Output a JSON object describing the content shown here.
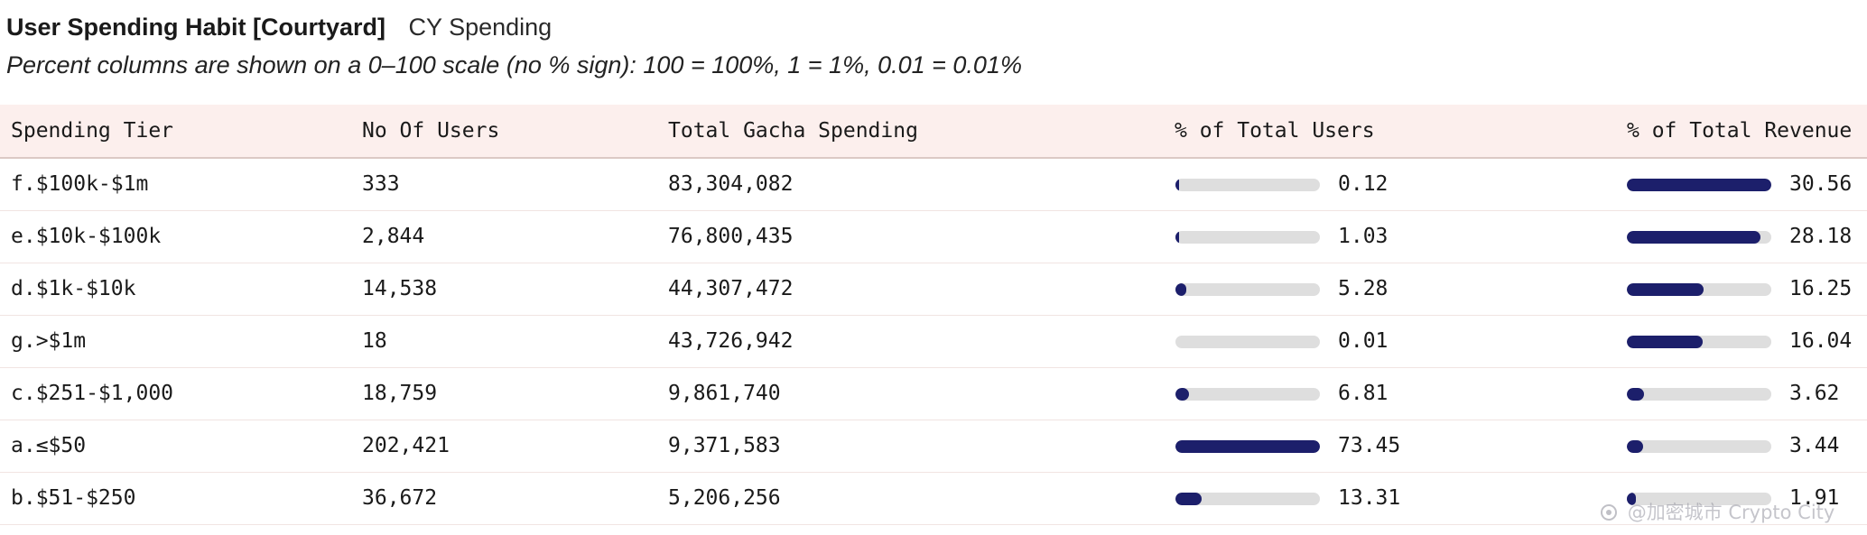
{
  "header": {
    "title": "User Spending Habit [Courtyard]",
    "subtitle_tag": "CY Spending",
    "note": "Percent columns are shown on a 0–100 scale (no % sign): 100 = 100%, 1 = 1%, 0.01 = 0.01%"
  },
  "table": {
    "columns": [
      "Spending Tier",
      "No Of Users",
      "Total Gacha Spending",
      "% of Total Users",
      "% of Total Revenue"
    ],
    "rows": [
      {
        "tier": "f.$100k-$1m",
        "users": "333",
        "spending": "83,304,082",
        "pct_users": "0.12",
        "pct_revenue": "30.56"
      },
      {
        "tier": "e.$10k-$100k",
        "users": "2,844",
        "spending": "76,800,435",
        "pct_users": "1.03",
        "pct_revenue": "28.18"
      },
      {
        "tier": "d.$1k-$10k",
        "users": "14,538",
        "spending": "44,307,472",
        "pct_users": "5.28",
        "pct_revenue": "16.25"
      },
      {
        "tier": "g.>$1m",
        "users": "18",
        "spending": "43,726,942",
        "pct_users": "0.01",
        "pct_revenue": "16.04"
      },
      {
        "tier": "c.$251-$1,000",
        "users": "18,759",
        "spending": "9,861,740",
        "pct_users": "6.81",
        "pct_revenue": "3.62"
      },
      {
        "tier": "a.≤$50",
        "users": "202,421",
        "spending": "9,371,583",
        "pct_users": "73.45",
        "pct_revenue": "3.44"
      },
      {
        "tier": "b.$51-$250",
        "users": "36,672",
        "spending": "5,206,256",
        "pct_users": "13.31",
        "pct_revenue": "1.91"
      }
    ],
    "bar_max": {
      "pct_users": 73.45,
      "pct_revenue": 30.56
    }
  },
  "colors": {
    "bar_fill": "#1c1f6b",
    "bar_track": "#dedede",
    "header_bg": "#fcefed"
  },
  "watermark": {
    "text": "@加密城市 Crypto City"
  }
}
